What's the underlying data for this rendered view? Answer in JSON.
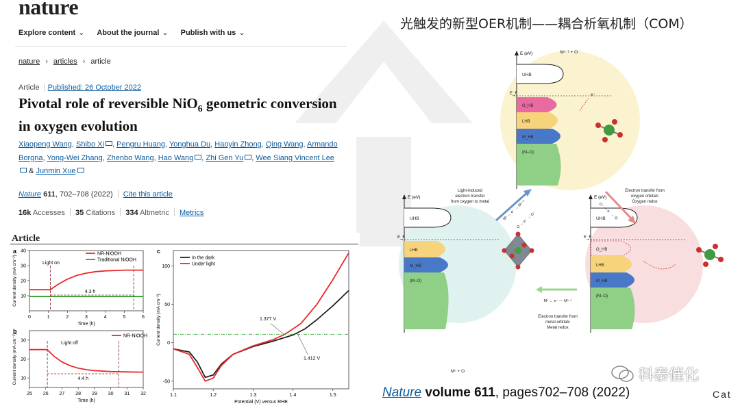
{
  "slide": {
    "title": "光触发的新型OER机制——耦合析氧机制（COM）",
    "reference": {
      "journal": "Nature",
      "volume_label": "volume 611",
      "pages": ", pages702–708 (2022)"
    },
    "watermark_text": "科泰催化",
    "cat_logo": "Cat"
  },
  "article_page": {
    "logo": "nature",
    "nav": [
      "Explore content",
      "About the journal",
      "Publish with us"
    ],
    "breadcrumb": [
      "nature",
      "articles",
      "article"
    ],
    "type": "Article",
    "published": "Published: 26 October 2022",
    "title_part1": "Pivotal role of reversible NiO",
    "title_sub": "6",
    "title_part2": " geometric conversion in oxygen evolution",
    "authors": [
      {
        "name": "Xiaopeng Wang",
        "env": false
      },
      {
        "name": "Shibo Xi",
        "env": true
      },
      {
        "name": "Pengru Huang",
        "env": false
      },
      {
        "name": "Yonghua Du",
        "env": false
      },
      {
        "name": "Haoyin Zhong",
        "env": false
      },
      {
        "name": "Qing Wang",
        "env": false
      },
      {
        "name": "Armando Borgna",
        "env": false
      },
      {
        "name": "Yong-Wei Zhang",
        "env": false
      },
      {
        "name": "Zhenbo Wang",
        "env": false
      },
      {
        "name": "Hao Wang",
        "env": true
      },
      {
        "name": "Zhi Gen Yu",
        "env": true
      },
      {
        "name": "Wee Siang Vincent Lee",
        "env": true
      },
      {
        "name": "Junmin Xue",
        "env": true
      }
    ],
    "citation": {
      "journal": "Nature",
      "volume": "611",
      "pages": ", 702–708 (2022)",
      "cite_link": "Cite this article"
    },
    "metrics": {
      "accesses": "16k",
      "accesses_label": "Accesses",
      "citations": "35",
      "citations_label": "Citations",
      "altmetric": "334",
      "altmetric_label": "Altmetric",
      "metrics_link": "Metrics"
    }
  },
  "figure": {
    "header": "Article",
    "panel_a": {
      "label": "a",
      "legend": [
        "NR-NiOOH",
        "Traditional NiOOH"
      ],
      "annotation": "Light on",
      "duration": "4.3 h",
      "xlabel": "Time (h)",
      "ylabel": "Current density (mA cm⁻²)",
      "xticks": [
        "0",
        "1",
        "2",
        "3",
        "4",
        "5",
        "6"
      ],
      "yticks": [
        "10",
        "20",
        "30",
        "40"
      ]
    },
    "panel_b": {
      "label": "b",
      "legend": [
        "NR-NiOOH"
      ],
      "annotation": "Light off",
      "duration": "4.4 h",
      "xlabel": "Time (h)",
      "ylabel": "Current density (mA cm⁻²)",
      "xticks": [
        "25",
        "26",
        "27",
        "28",
        "29",
        "30",
        "31",
        "32"
      ],
      "yticks": [
        "10",
        "20",
        "30"
      ]
    },
    "panel_c": {
      "label": "c",
      "legend": [
        "In the dark",
        "Under light"
      ],
      "ann1": "1.377 V",
      "ann2": "1.412 V",
      "xlabel": "Potential (V) versus RHE",
      "ylabel": "Current density (mA cm⁻²)",
      "xticks": [
        "1.1",
        "1.2",
        "1.3",
        "1.4",
        "1.5"
      ],
      "yticks": [
        "-50",
        "0",
        "50",
        "100"
      ]
    }
  },
  "chart_data": [
    {
      "type": "line",
      "title": "",
      "xlabel": "Time (h)",
      "ylabel": "Current density (mA cm⁻²)",
      "xlim": [
        0,
        6
      ],
      "ylim": [
        0,
        40
      ],
      "series": [
        {
          "name": "NR-NiOOH",
          "color": "#e8272a",
          "x": [
            0,
            1.1,
            1.5,
            2,
            2.5,
            3,
            3.5,
            4,
            5,
            6
          ],
          "y": [
            14,
            14,
            17.5,
            21,
            23.5,
            25,
            26,
            26.5,
            27,
            27
          ]
        },
        {
          "name": "Traditional NiOOH",
          "color": "#2a9d2a",
          "x": [
            0,
            6
          ],
          "y": [
            9.5,
            9.5
          ]
        }
      ]
    },
    {
      "type": "line",
      "title": "",
      "xlabel": "Time (h)",
      "ylabel": "Current density (mA cm⁻²)",
      "xlim": [
        25,
        32
      ],
      "ylim": [
        5,
        35
      ],
      "series": [
        {
          "name": "NR-NiOOH",
          "color": "#e8272a",
          "x": [
            25,
            26.1,
            26.5,
            27,
            27.5,
            28,
            28.5,
            29,
            30,
            31,
            32
          ],
          "y": [
            25,
            25,
            21.5,
            18.5,
            16.5,
            15.2,
            14.4,
            13.9,
            13.4,
            13.2,
            13.1
          ]
        }
      ]
    },
    {
      "type": "line",
      "title": "",
      "xlabel": "Potential (V) versus RHE",
      "ylabel": "Current density (mA cm⁻²)",
      "xlim": [
        1.1,
        1.54
      ],
      "ylim": [
        -60,
        120
      ],
      "series": [
        {
          "name": "In the dark",
          "color": "#222222",
          "x": [
            1.1,
            1.14,
            1.16,
            1.18,
            1.2,
            1.22,
            1.25,
            1.3,
            1.35,
            1.4,
            1.43,
            1.46,
            1.5,
            1.54
          ],
          "y": [
            -8,
            -12,
            -25,
            -45,
            -42,
            -28,
            -15,
            -5,
            2,
            10,
            18,
            30,
            48,
            68
          ]
        },
        {
          "name": "Under light",
          "color": "#e8272a",
          "x": [
            1.1,
            1.14,
            1.16,
            1.18,
            1.2,
            1.22,
            1.25,
            1.3,
            1.35,
            1.38,
            1.42,
            1.46,
            1.5,
            1.54
          ],
          "y": [
            -8,
            -15,
            -32,
            -50,
            -46,
            -30,
            -15,
            -4,
            4,
            11,
            25,
            50,
            82,
            117
          ]
        }
      ]
    }
  ],
  "diagram": {
    "top_label": "Mⁿ⁻¹ + O⁻",
    "bottom_label": "Mⁿ + O",
    "axis_label": "E (eV)",
    "ef": "E_F",
    "bands": {
      "uhb": "UHB",
      "ohb": "O_HB",
      "lhb": "LHB",
      "mhb": "M_HB",
      "mo": "(M–O)",
      "electron": "e⁻"
    },
    "left_caption": [
      "Light-induced",
      "electron transfer",
      "from oxygen to metal"
    ],
    "right_caption": [
      "Electron transfer from",
      "oxygen orbitals",
      "Oxygen redox"
    ],
    "bottom_caption": [
      "Electron transfer from",
      "metal orbitals",
      "Metal redox"
    ],
    "left_arrow_eq": "Mⁿ ← e⁻ → Mⁿ⁻¹",
    "left_arrow_eq2": "O ← e⁻ → O⁻",
    "right_arrow_eq": "O⁻ — e⁻ → O",
    "bottom_arrow_eq": "Mⁿ ← e⁻ — Mⁿ⁻¹",
    "colors": {
      "top": "#fbf3cf",
      "left": "#dff2ef",
      "right": "#f8dede",
      "uhb": "#ffffff",
      "ohb": "#e96aa0",
      "lhb": "#f7d37c",
      "mhb": "#4a78c8",
      "mo": "#8fcf86"
    }
  }
}
